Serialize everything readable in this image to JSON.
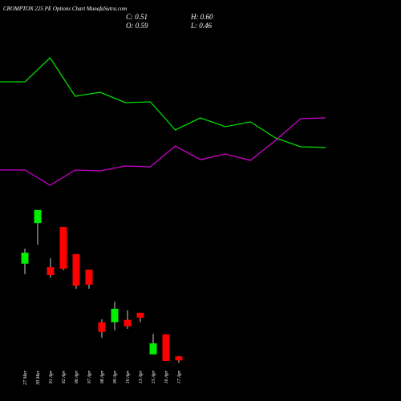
{
  "chart_data": [
    {
      "type": "candlestick",
      "title": "CROMPTON 225 PE Options Chart MunafaSutra.com",
      "readout": [
        "C: 0.51",
        "H: 0.60",
        "O: 0.59",
        "L: 0.46"
      ],
      "categories": [
        "27 Mar",
        "30 Mar",
        "01 Apr",
        "02 Apr",
        "06 Apr",
        "07 Apr",
        "08 Apr",
        "09 Apr",
        "10 Apr",
        "13 Apr",
        "15 Apr",
        "16 Apr",
        "17 Apr"
      ],
      "open": [
        2.44,
        3.25,
        2.37,
        3.17,
        2.63,
        2.32,
        1.27,
        1.27,
        1.32,
        1.46,
        0.63,
        1.03,
        0.59
      ],
      "close": [
        2.66,
        3.51,
        2.21,
        2.34,
        2.0,
        2.02,
        1.08,
        1.54,
        1.19,
        1.36,
        0.85,
        0.5,
        0.51
      ],
      "high": [
        2.74,
        3.51,
        2.55,
        3.17,
        2.63,
        2.32,
        1.33,
        1.68,
        1.51,
        1.46,
        1.04,
        1.03,
        0.6
      ],
      "low": [
        2.23,
        2.82,
        2.16,
        2.31,
        1.94,
        1.94,
        0.96,
        1.11,
        1.14,
        1.27,
        0.63,
        0.5,
        0.46
      ],
      "up_color": "#00ee00",
      "down_color": "#ff0000",
      "ylim": [
        0.34,
        3.7
      ]
    },
    {
      "type": "line",
      "series": [
        {
          "color": "#00dd00",
          "values": [
            138,
            138,
            168,
            120,
            125,
            112,
            113,
            78,
            93,
            82,
            88,
            68,
            57,
            56
          ]
        },
        {
          "color": "#cc00cc",
          "values": [
            28,
            28,
            9,
            28,
            27,
            33,
            32,
            58,
            41,
            48,
            40,
            65,
            92,
            93
          ]
        }
      ],
      "ylim": [
        0,
        180
      ]
    }
  ]
}
